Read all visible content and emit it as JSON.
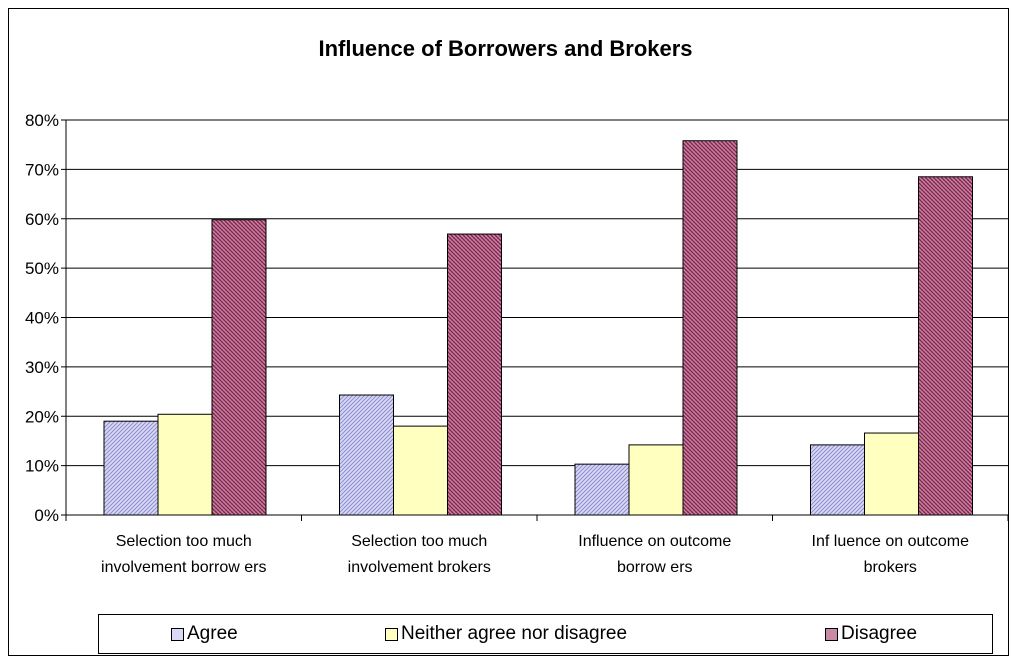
{
  "chart_data": {
    "type": "bar",
    "title": "Influence of Borrowers and Brokers",
    "categories": [
      [
        "Selection  too much",
        "involvement borrow ers"
      ],
      [
        "Selection  too much",
        "involvement brokers"
      ],
      [
        "Influence on outcome",
        "borrow ers"
      ],
      [
        "Inf luence on outcome",
        "brokers"
      ]
    ],
    "series": [
      {
        "name": "Agree",
        "values": [
          19,
          24.3,
          10.3,
          14.2
        ],
        "color": "#b4b4ee",
        "pattern": "diag-blue"
      },
      {
        "name": "Neither agree nor disagree",
        "values": [
          20.4,
          18,
          14.2,
          16.6
        ],
        "color": "#ffffc0",
        "pattern": "none"
      },
      {
        "name": "Disagree",
        "values": [
          59.8,
          56.9,
          75.8,
          68.5
        ],
        "color": "#a0285a",
        "pattern": "hatch-maroon"
      }
    ],
    "ylim": [
      0,
      80
    ],
    "yticks": [
      "0%",
      "10%",
      "20%",
      "30%",
      "40%",
      "50%",
      "60%",
      "70%",
      "80%"
    ],
    "grid": true,
    "legend_position": "bottom"
  }
}
